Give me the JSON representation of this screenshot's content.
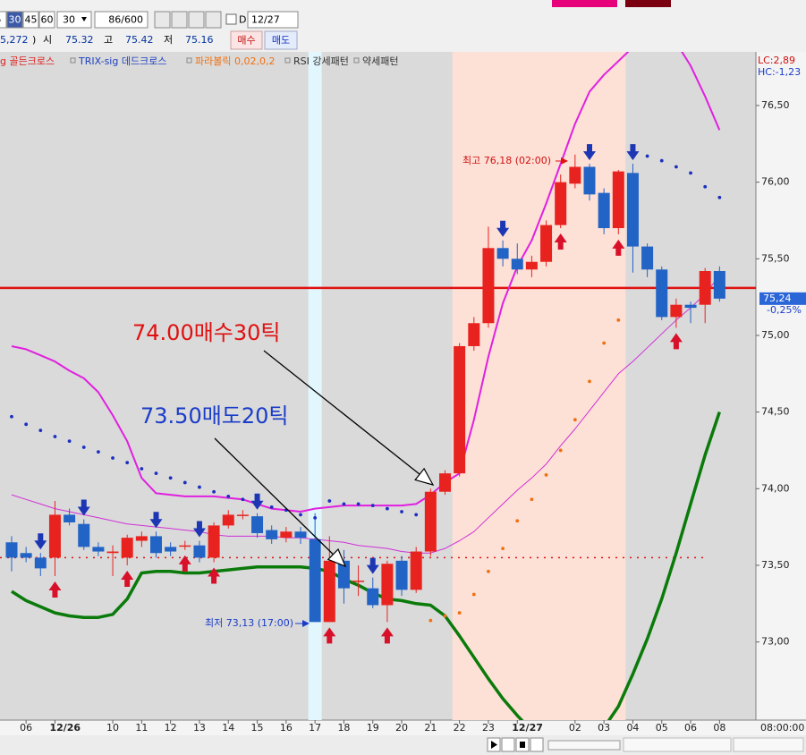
{
  "toolbar": {
    "periods": [
      "5",
      "30",
      "45",
      "60"
    ],
    "interval": "30",
    "count": "86/600",
    "date_flag": "D",
    "date": "12/27",
    "price": "5,272",
    "paren": ")",
    "open_label": "시",
    "open": "75.32",
    "high_label": "고",
    "high": "75.42",
    "low_label": "저",
    "low": "75.16",
    "buy": "매수",
    "sell": "매도"
  },
  "chart_data": {
    "type": "candlestick",
    "legend": [
      {
        "text": "g 골든크로스",
        "color": "#e02020"
      },
      {
        "text": "TRIX-sig 데드크로스",
        "color": "#2040c0"
      },
      {
        "text": "파라볼릭 0,02,0,2",
        "color": "#f07010"
      },
      {
        "text": "RSI 강세패턴",
        "color": "#303030"
      },
      {
        "text": "약세패턴",
        "color": "#303030"
      }
    ],
    "lc": "LC:2,89",
    "hc": "HC:-1,23",
    "time": "08:00:00",
    "categories": [
      null,
      "06",
      null,
      "12/26",
      null,
      null,
      null,
      "10",
      null,
      "11",
      null,
      "12",
      null,
      "13",
      null,
      "14",
      null,
      "15",
      null,
      "16",
      null,
      "17",
      null,
      "18",
      null,
      "19",
      null,
      "20",
      null,
      "21",
      null,
      "22",
      null,
      "23",
      null,
      "12/27",
      null,
      null,
      null,
      "02",
      null,
      "03",
      null,
      "04",
      null,
      "05",
      null,
      "06",
      null,
      "08"
    ],
    "open": [
      73.65,
      73.58,
      73.55,
      73.55,
      73.83,
      73.77,
      73.62,
      73.58,
      73.55,
      73.66,
      73.69,
      73.62,
      73.63,
      73.63,
      73.55,
      73.76,
      73.83,
      73.82,
      73.73,
      73.68,
      73.72,
      73.67,
      73.13,
      73.53,
      73.4,
      73.35,
      73.24,
      73.53,
      73.34,
      73.59,
      73.98,
      74.1,
      74.93,
      75.08,
      75.57,
      75.5,
      75.43,
      75.48,
      75.72,
      75.99,
      76.1,
      75.93,
      75.7,
      76.06,
      75.58,
      75.43,
      75.12,
      75.2,
      75.2,
      75.42
    ],
    "high": [
      73.69,
      73.62,
      73.58,
      73.92,
      73.87,
      73.8,
      73.65,
      73.63,
      73.7,
      73.72,
      73.72,
      73.65,
      73.66,
      73.66,
      73.78,
      73.86,
      73.86,
      73.84,
      73.76,
      73.75,
      73.75,
      73.84,
      73.69,
      73.6,
      73.5,
      73.42,
      73.53,
      73.56,
      73.62,
      74.0,
      74.12,
      74.95,
      75.12,
      75.71,
      75.62,
      75.6,
      75.52,
      75.75,
      76.05,
      76.18,
      76.12,
      75.96,
      76.08,
      76.12,
      75.6,
      75.45,
      75.24,
      75.22,
      75.44,
      75.45
    ],
    "low": [
      73.46,
      73.52,
      73.43,
      73.43,
      73.76,
      73.6,
      73.56,
      73.43,
      73.5,
      73.62,
      73.55,
      73.56,
      73.6,
      73.52,
      73.52,
      73.74,
      73.8,
      73.68,
      73.64,
      73.65,
      73.64,
      73.13,
      73.13,
      73.25,
      73.3,
      73.22,
      73.13,
      73.3,
      73.32,
      73.56,
      73.96,
      74.08,
      74.9,
      75.05,
      75.45,
      75.4,
      75.38,
      75.45,
      75.7,
      75.96,
      75.88,
      75.66,
      75.66,
      75.41,
      75.38,
      75.1,
      75.05,
      75.08,
      75.08,
      75.22
    ],
    "close": [
      73.55,
      73.55,
      73.48,
      73.83,
      73.78,
      73.62,
      73.59,
      73.59,
      73.68,
      73.69,
      73.58,
      73.59,
      73.63,
      73.55,
      73.76,
      73.83,
      73.83,
      73.71,
      73.67,
      73.72,
      73.68,
      73.13,
      73.53,
      73.35,
      73.4,
      73.24,
      73.51,
      73.34,
      73.59,
      73.98,
      74.1,
      74.93,
      75.08,
      75.57,
      75.5,
      75.43,
      75.48,
      75.72,
      76.0,
      76.1,
      75.92,
      75.7,
      76.07,
      75.58,
      75.43,
      75.12,
      75.2,
      75.18,
      75.42,
      75.24
    ],
    "up_color": "#e8231f",
    "down_color": "#2263c6",
    "overlays": [
      {
        "color": "#e020e0",
        "width": 2,
        "values": [
          74.93,
          74.91,
          74.87,
          74.83,
          74.77,
          74.72,
          74.63,
          74.48,
          74.31,
          74.07,
          73.97,
          73.96,
          73.95,
          73.95,
          73.95,
          73.94,
          73.93,
          73.9,
          73.87,
          73.86,
          73.85,
          73.87,
          73.88,
          73.89,
          73.89,
          73.89,
          73.89,
          73.89,
          73.9,
          73.96,
          74.04,
          74.1,
          74.45,
          74.86,
          75.21,
          75.45,
          75.62,
          75.86,
          76.12,
          76.38,
          76.59,
          76.7,
          76.79,
          76.88,
          76.94,
          76.97,
          76.91,
          76.76,
          76.56,
          76.34
        ]
      },
      {
        "color": "#d030d8",
        "width": 1,
        "values": [
          73.96,
          73.93,
          73.9,
          73.87,
          73.85,
          73.83,
          73.81,
          73.79,
          73.77,
          73.76,
          73.75,
          73.74,
          73.73,
          73.72,
          73.7,
          73.69,
          73.69,
          73.69,
          73.69,
          73.68,
          73.68,
          73.67,
          73.66,
          73.65,
          73.63,
          73.62,
          73.61,
          73.59,
          73.58,
          73.58,
          73.61,
          73.66,
          73.72,
          73.81,
          73.9,
          73.99,
          74.07,
          74.16,
          74.28,
          74.39,
          74.51,
          74.63,
          74.75,
          74.83,
          74.92,
          75.01,
          75.1,
          75.18,
          75.27,
          75.39
        ]
      },
      {
        "color": "#0a7a0a",
        "width": 3.5,
        "values": [
          73.33,
          73.27,
          73.23,
          73.19,
          73.17,
          73.16,
          73.16,
          73.18,
          73.28,
          73.45,
          73.46,
          73.46,
          73.45,
          73.45,
          73.46,
          73.47,
          73.48,
          73.49,
          73.49,
          73.49,
          73.49,
          73.48,
          73.46,
          73.41,
          73.37,
          73.32,
          73.28,
          73.27,
          73.25,
          73.24,
          73.17,
          73.04,
          72.9,
          72.76,
          72.63,
          72.52,
          72.42,
          72.35,
          72.3,
          72.29,
          72.34,
          72.44,
          72.58,
          72.79,
          73.02,
          73.28,
          73.58,
          73.9,
          74.22,
          74.5
        ]
      }
    ],
    "sar": [
      {
        "color": "#1a2fc0",
        "values": [
          74.47,
          74.42,
          74.38,
          74.34,
          74.31,
          74.27,
          74.24,
          74.2,
          74.17,
          74.13,
          74.1,
          74.07,
          74.04,
          74.01,
          73.98,
          73.95,
          73.93,
          73.9,
          73.88,
          73.86,
          73.83,
          73.81,
          73.92,
          73.9,
          73.9,
          73.89,
          73.87,
          73.85,
          73.83,
          null,
          null,
          null,
          null,
          null,
          null,
          null,
          null,
          null,
          null,
          null,
          null,
          null,
          null,
          76.21,
          76.17,
          76.14,
          76.1,
          76.06,
          75.97,
          75.9
        ]
      },
      {
        "color": "#f07010",
        "values": [
          null,
          null,
          null,
          null,
          null,
          null,
          null,
          null,
          null,
          null,
          null,
          null,
          null,
          null,
          null,
          null,
          null,
          null,
          null,
          null,
          null,
          null,
          null,
          null,
          null,
          null,
          null,
          null,
          null,
          73.14,
          73.17,
          73.19,
          73.31,
          73.46,
          73.61,
          73.79,
          73.93,
          74.09,
          74.25,
          74.45,
          74.7,
          74.95,
          75.1,
          null,
          null,
          null,
          null,
          null,
          null,
          null
        ]
      }
    ],
    "up_arrows": [
      3,
      8,
      12,
      14,
      22,
      26,
      38,
      42,
      46
    ],
    "down_arrows": [
      2,
      5,
      10,
      13,
      17,
      25,
      34,
      40,
      43
    ],
    "shade": [
      31,
      42
    ],
    "highlight": 21,
    "hlines": [
      {
        "value": 75.31,
        "color": "#e01010",
        "style": "solid"
      },
      {
        "value": 73.55,
        "color": "#e01010",
        "style": "dotted"
      }
    ],
    "last": {
      "value": 75.24,
      "label": "75,24",
      "change": "-0,25%"
    },
    "annotations": [
      {
        "text": "74.00매수30틱",
        "color": "#e01010"
      },
      {
        "text": "73.50매도20틱",
        "color": "#1a3cc8"
      }
    ],
    "high_note": "최고 76,18 (02:00)",
    "low_note": "최저 73,13 (17:00)",
    "ylim": [
      72.49,
      76.85
    ],
    "yticks": [
      {
        "value": 73,
        "label": "73,00"
      },
      {
        "value": 73.5,
        "label": "73,50"
      },
      {
        "value": 74,
        "label": "74,00"
      },
      {
        "value": 74.5,
        "label": "74,50"
      },
      {
        "value": 75,
        "label": "75,00"
      },
      {
        "value": 75.5,
        "label": "75,50"
      },
      {
        "value": 76,
        "label": "76,00"
      },
      {
        "value": 76.5,
        "label": "76,50"
      }
    ],
    "grid": false
  }
}
